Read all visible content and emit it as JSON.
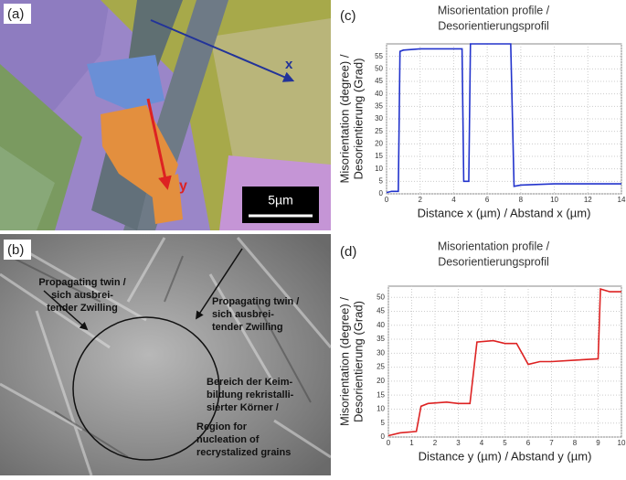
{
  "chart_data": [
    {
      "type": "line",
      "panel": "(c)",
      "title": [
        "Misorientation profile /",
        "Desorientierungsprofil"
      ],
      "xlabel": "Distance x (µm) / Abstand x (µm)",
      "ylabel": [
        "Misorientation (degree) /",
        "Desorientierung (Grad)"
      ],
      "x": [
        0,
        0.3,
        0.7,
        0.8,
        1,
        2,
        3,
        4.3,
        4.5,
        4.6,
        4.8,
        4.9,
        5.0,
        6,
        7.3,
        7.4,
        7.6,
        8,
        10,
        12,
        14
      ],
      "series": [
        {
          "color": "#2233cc",
          "values": [
            0.5,
            1,
            1,
            57,
            57.5,
            58,
            58,
            58,
            58,
            5,
            5,
            5,
            60,
            60,
            60,
            60,
            3,
            3.5,
            4,
            4,
            4
          ]
        }
      ],
      "xlim": [
        0,
        14
      ],
      "xticks": [
        0,
        2,
        4,
        6,
        8,
        10,
        12,
        14
      ],
      "ylim": [
        0,
        60
      ],
      "yticks": [
        0,
        5,
        10,
        15,
        20,
        25,
        30,
        35,
        40,
        45,
        50,
        55
      ],
      "grid": true
    },
    {
      "type": "line",
      "panel": "(d)",
      "title": [
        "Misorientation profile /",
        "Desorientierungsprofil"
      ],
      "xlabel": "Distance y (µm) / Abstand y (µm)",
      "ylabel": [
        "Misorientation (degree) /",
        "Desorientierung (Grad)"
      ],
      "x": [
        0,
        0.5,
        1.2,
        1.4,
        1.7,
        2.5,
        3,
        3.5,
        3.8,
        4.5,
        5,
        5.5,
        6,
        6.5,
        7,
        8,
        9,
        9.1,
        9.5,
        10
      ],
      "series": [
        {
          "color": "#dd2222",
          "values": [
            0.5,
            1.5,
            2,
            11,
            12,
            12.5,
            12,
            12,
            34,
            34.5,
            33.5,
            33.5,
            26,
            27,
            27,
            27.5,
            28,
            53,
            52,
            52
          ]
        }
      ],
      "xlim": [
        0,
        10
      ],
      "xticks": [
        0,
        1,
        2,
        3,
        4,
        5,
        6,
        7,
        8,
        9,
        10
      ],
      "ylim": [
        0,
        54
      ],
      "yticks": [
        0,
        5,
        10,
        15,
        20,
        25,
        30,
        35,
        40,
        45,
        50
      ],
      "grid": true
    }
  ],
  "image_a": {
    "panel": "(a)",
    "x_label": "x",
    "y_label": "y",
    "scale": "5µm"
  },
  "image_b": {
    "panel": "(b)",
    "note_left": [
      "Propagating twin /",
      "sich ausbrei-",
      "tender Zwilling"
    ],
    "note_right": [
      "Propagating twin /",
      "sich ausbrei-",
      "tender Zwilling"
    ],
    "note_center": [
      "Bereich der Keim-",
      "bildung rekristalli-",
      "sierter Körner /"
    ],
    "note_bottom": [
      "Region for",
      "nucleation of",
      "recrystalized grains"
    ]
  }
}
